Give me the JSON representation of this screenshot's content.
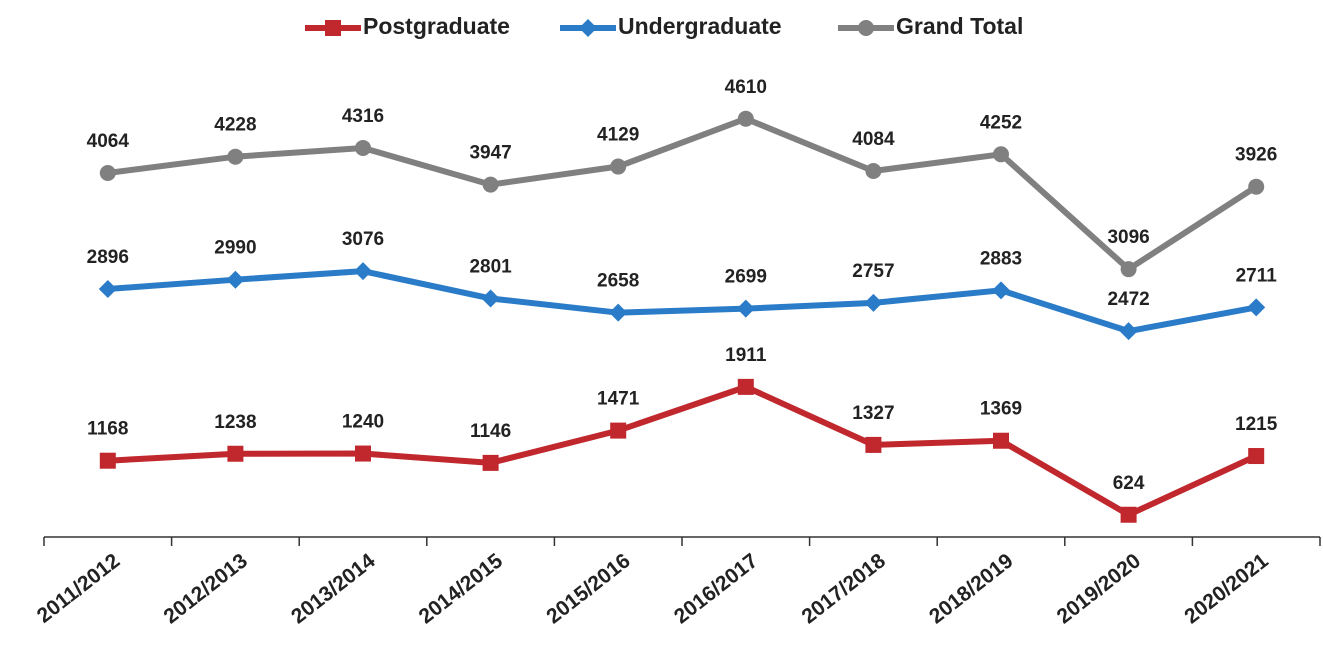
{
  "chart_data": {
    "type": "line",
    "categories": [
      "2011/2012",
      "2012/2013",
      "2013/2014",
      "2014/2015",
      "2015/2016",
      "2016/2017",
      "2017/2018",
      "2018/2019",
      "2019/2020",
      "2020/2021"
    ],
    "series": [
      {
        "name": "Postgraduate",
        "color": "#c0282d",
        "marker": "square",
        "values": [
          1168,
          1238,
          1240,
          1146,
          1471,
          1911,
          1327,
          1369,
          624,
          1215
        ]
      },
      {
        "name": "Undergraduate",
        "color": "#2a7bc8",
        "marker": "diamond",
        "values": [
          2896,
          2990,
          3076,
          2801,
          2658,
          2699,
          2757,
          2883,
          2472,
          2711
        ]
      },
      {
        "name": "Grand Total",
        "color": "#808080",
        "marker": "circle",
        "values": [
          4064,
          4228,
          4316,
          3947,
          4129,
          4610,
          4084,
          4252,
          3096,
          3926
        ]
      }
    ],
    "ylim": [
      400,
      5000
    ],
    "legend": "top"
  }
}
